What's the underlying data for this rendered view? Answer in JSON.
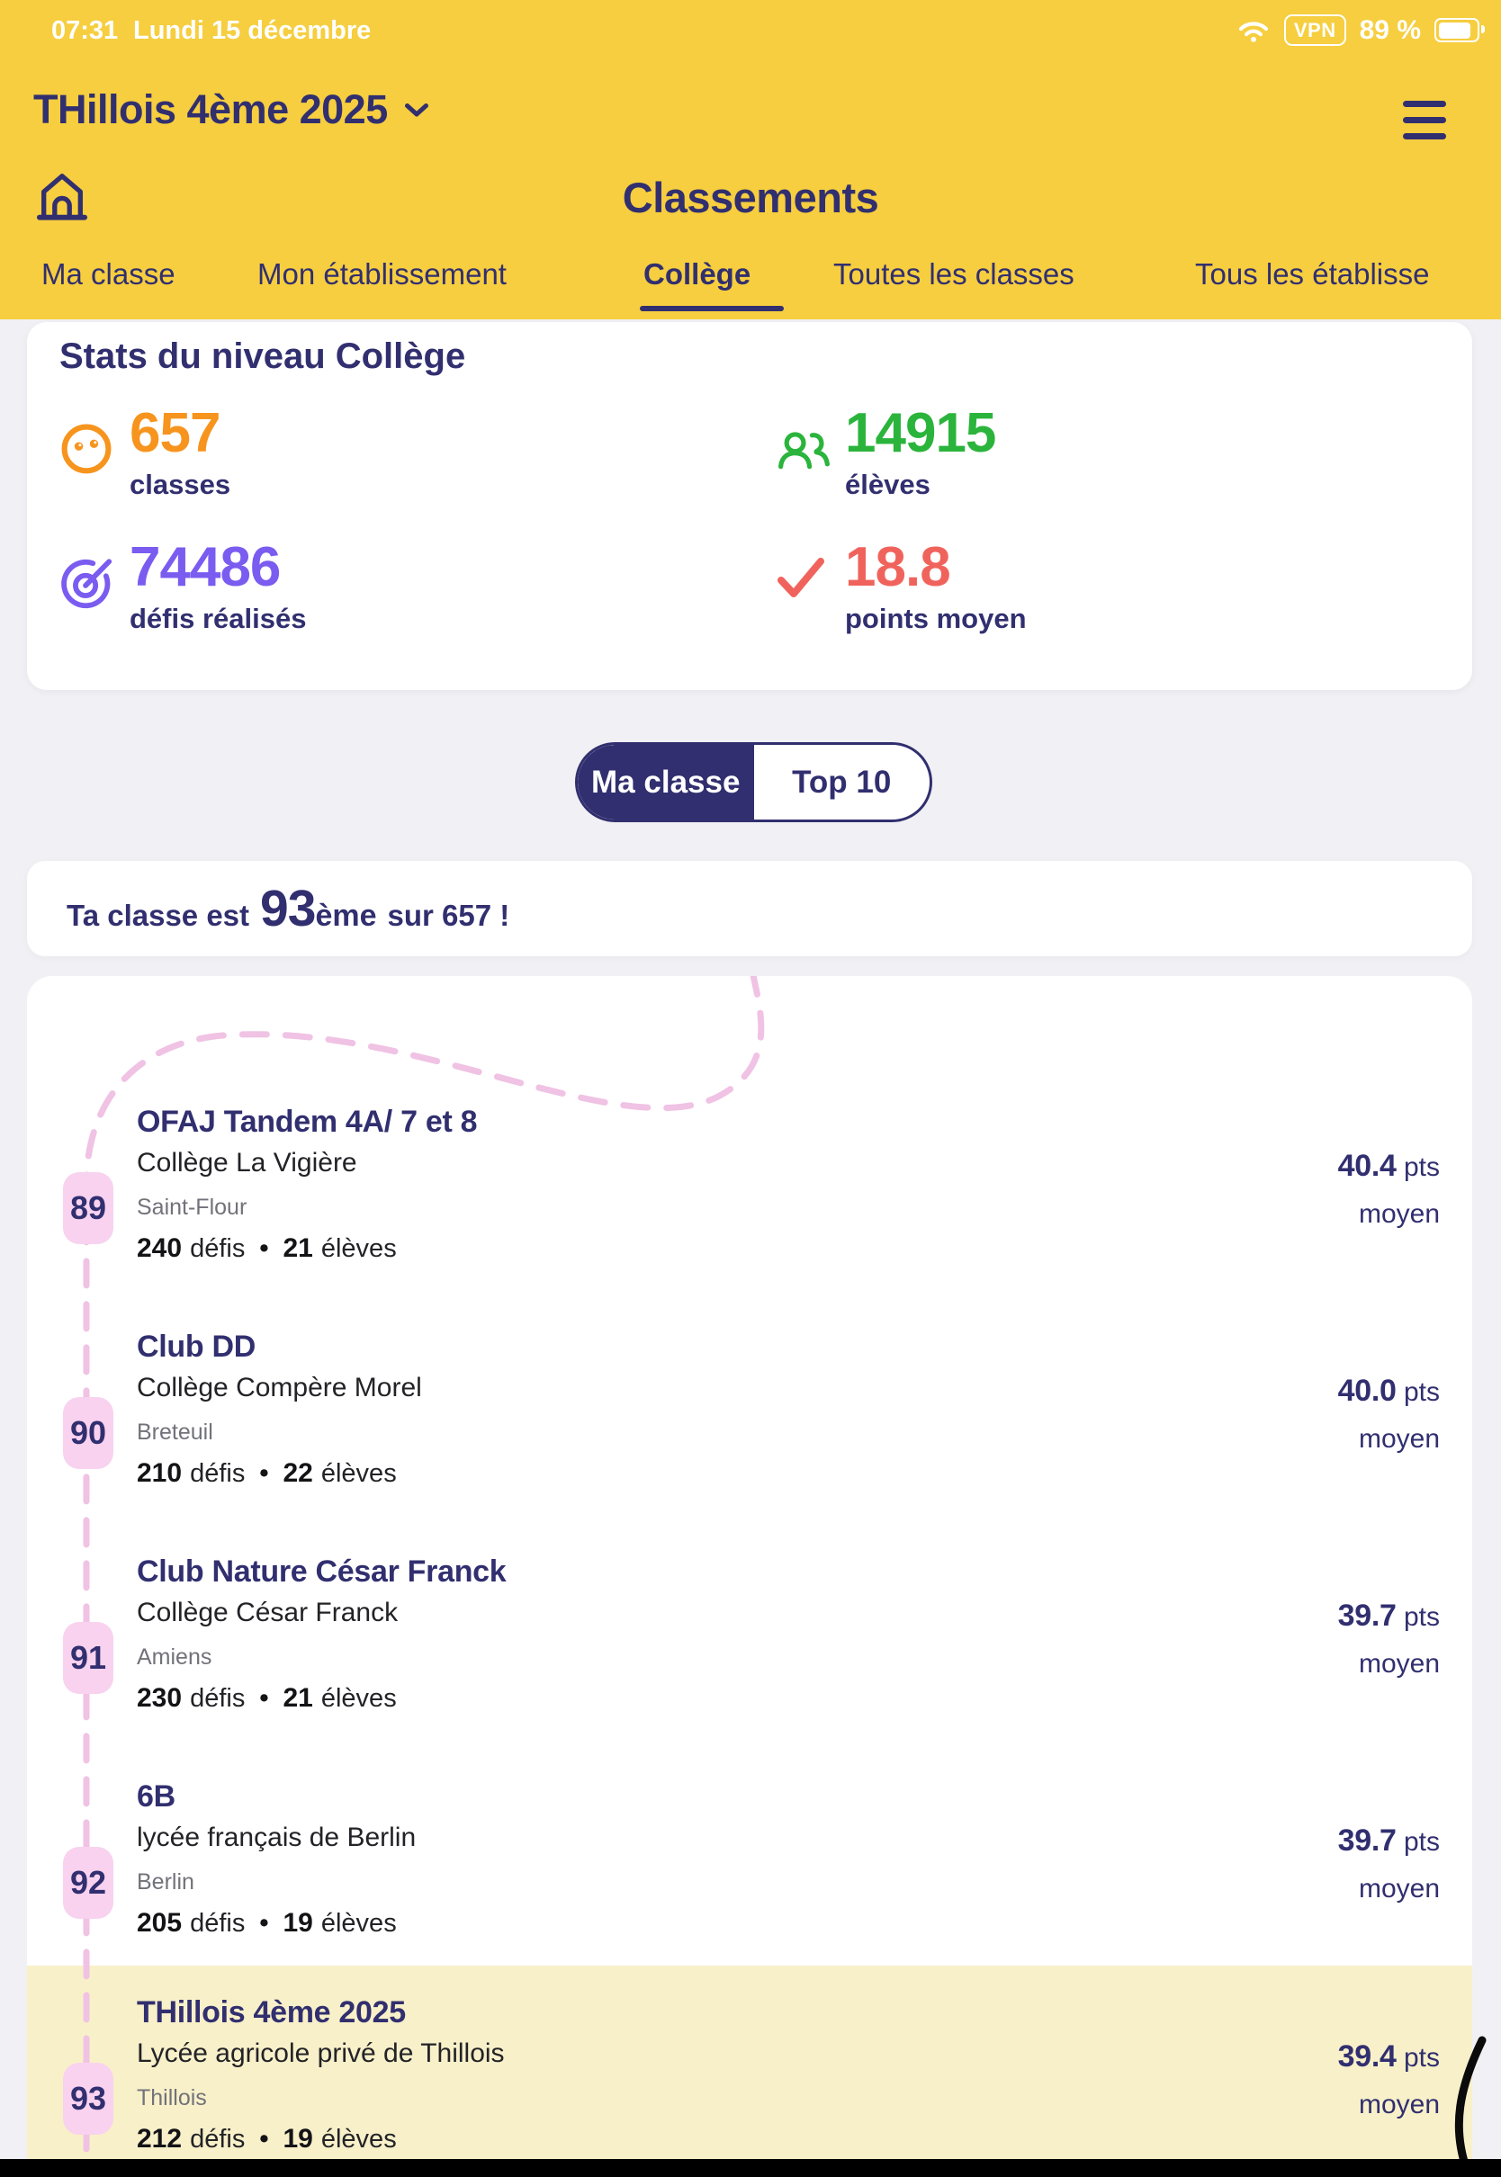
{
  "colors": {
    "yellow": "#F6CE3F",
    "navy": "#312F6F",
    "page_bg": "#F1F0F4",
    "card_bg": "#FFFFFF",
    "orange": "#F7941E",
    "green": "#2BB43C",
    "purple": "#7A5CF0",
    "coral": "#F0635C",
    "badge_pink": "#F8D2EF",
    "dash_pink": "#F0C2E4",
    "highlight_yellow": "#F8F0C9",
    "text_dark": "#232327",
    "text_gray": "#72727B"
  },
  "status_bar": {
    "time": "07:31",
    "date": "Lundi 15 décembre",
    "vpn_label": "VPN",
    "battery_percent": "89 %"
  },
  "header": {
    "class_selector": "THillois 4ème 2025",
    "page_title": "Classements",
    "tabs": [
      {
        "label": "Ma classe",
        "active": false
      },
      {
        "label": "Mon établissement",
        "active": false
      },
      {
        "label": "Collège",
        "active": true
      },
      {
        "label": "Toutes les classes",
        "active": false
      },
      {
        "label": "Tous les établisse",
        "active": false
      }
    ]
  },
  "stats": {
    "title": "Stats du niveau Collège",
    "items": [
      {
        "icon": "smiley-icon",
        "value": "657",
        "label": "classes",
        "color": "#F7941E"
      },
      {
        "icon": "students-icon",
        "value": "14915",
        "label": "élèves",
        "color": "#2BB43C"
      },
      {
        "icon": "target-icon",
        "value": "74486",
        "label": "défis réalisés",
        "color": "#7A5CF0"
      },
      {
        "icon": "checkmark-icon",
        "value": "18.8",
        "label": "points moyen",
        "color": "#F0635C"
      }
    ]
  },
  "toggle": {
    "left_label": "Ma classe",
    "right_label": "Top 10",
    "selected": "Ma classe"
  },
  "banner": {
    "prefix": "Ta classe est",
    "rank": "93",
    "rank_suffix": "ème",
    "suffix": "sur 657 !"
  },
  "ranking": {
    "labels": {
      "defis": "défis",
      "eleves": "élèves",
      "bullet": "•",
      "pts": "pts",
      "moyen": "moyen"
    },
    "rows": [
      {
        "rank": "89",
        "name": "OFAJ Tandem 4A/ 7 et 8",
        "school": "Collège La Vigière",
        "city": "Saint-Flour",
        "defis": "240",
        "eleves": "21",
        "pts": "40.4",
        "highlighted": false
      },
      {
        "rank": "90",
        "name": "Club DD",
        "school": "Collège Compère Morel",
        "city": "Breteuil",
        "defis": "210",
        "eleves": "22",
        "pts": "40.0",
        "highlighted": false
      },
      {
        "rank": "91",
        "name": "Club Nature César Franck",
        "school": "Collège César Franck",
        "city": "Amiens",
        "defis": "230",
        "eleves": "21",
        "pts": "39.7",
        "highlighted": false
      },
      {
        "rank": "92",
        "name": "6B",
        "school": "lycée français de Berlin",
        "city": "Berlin",
        "defis": "205",
        "eleves": "19",
        "pts": "39.7",
        "highlighted": false
      },
      {
        "rank": "93",
        "name": "THillois 4ème 2025",
        "school": "Lycée agricole privé de Thillois",
        "city": "Thillois",
        "defis": "212",
        "eleves": "19",
        "pts": "39.4",
        "highlighted": true
      }
    ]
  }
}
